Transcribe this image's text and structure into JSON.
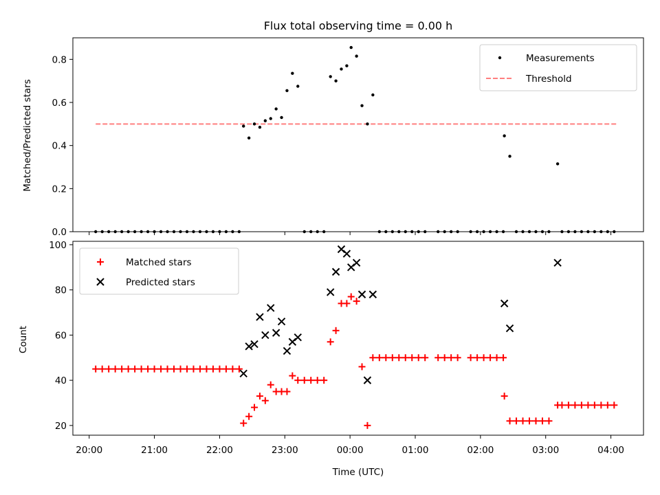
{
  "chart_data": [
    {
      "type": "scatter",
      "title": "Flux total observing time = 0.00 h",
      "xlabel": "",
      "ylabel": "Matched/Predicted stars",
      "xlim": [
        "19:45",
        "04:30"
      ],
      "ylim": [
        0,
        0.9
      ],
      "yticks": [
        0.0,
        0.2,
        0.4,
        0.6,
        0.8
      ],
      "ytick_labels": [
        "0.0",
        "0.2",
        "0.4",
        "0.6",
        "0.8"
      ],
      "legend_position": "top-right",
      "threshold": {
        "name": "Threshold",
        "value": 0.5,
        "x_range": [
          "20:06",
          "04:06"
        ],
        "color": "#ff7f7f"
      },
      "series": [
        {
          "name": "Measurements",
          "color": "#000000",
          "points": [
            [
              "20:06",
              0
            ],
            [
              "20:12",
              0
            ],
            [
              "20:18",
              0
            ],
            [
              "20:24",
              0
            ],
            [
              "20:30",
              0
            ],
            [
              "20:36",
              0
            ],
            [
              "20:42",
              0
            ],
            [
              "20:48",
              0
            ],
            [
              "20:54",
              0
            ],
            [
              "21:00",
              0
            ],
            [
              "21:06",
              0
            ],
            [
              "21:12",
              0
            ],
            [
              "21:18",
              0
            ],
            [
              "21:24",
              0
            ],
            [
              "21:30",
              0
            ],
            [
              "21:36",
              0
            ],
            [
              "21:42",
              0
            ],
            [
              "21:48",
              0
            ],
            [
              "21:54",
              0
            ],
            [
              "22:00",
              0
            ],
            [
              "22:06",
              0
            ],
            [
              "22:12",
              0
            ],
            [
              "22:18",
              0
            ],
            [
              "22:22",
              0.49
            ],
            [
              "22:27",
              0.435
            ],
            [
              "22:32",
              0.5
            ],
            [
              "22:37",
              0.485
            ],
            [
              "22:42",
              0.515
            ],
            [
              "22:47",
              0.525
            ],
            [
              "22:52",
              0.57
            ],
            [
              "22:57",
              0.53
            ],
            [
              "23:02",
              0.655
            ],
            [
              "23:07",
              0.735
            ],
            [
              "23:12",
              0.675
            ],
            [
              "23:18",
              0
            ],
            [
              "23:24",
              0
            ],
            [
              "23:30",
              0
            ],
            [
              "23:36",
              0
            ],
            [
              "23:42",
              0.72
            ],
            [
              "23:47",
              0.7
            ],
            [
              "23:52",
              0.755
            ],
            [
              "23:57",
              0.77
            ],
            [
              "00:01",
              0.855
            ],
            [
              "00:06",
              0.815
            ],
            [
              "00:11",
              0.585
            ],
            [
              "00:16",
              0.5
            ],
            [
              "00:21",
              0.635
            ],
            [
              "00:27",
              0
            ],
            [
              "00:33",
              0
            ],
            [
              "00:39",
              0
            ],
            [
              "00:45",
              0
            ],
            [
              "00:51",
              0
            ],
            [
              "00:57",
              0
            ],
            [
              "01:03",
              0
            ],
            [
              "01:09",
              0
            ],
            [
              "01:21",
              0
            ],
            [
              "01:27",
              0
            ],
            [
              "01:33",
              0
            ],
            [
              "01:39",
              0
            ],
            [
              "01:51",
              0
            ],
            [
              "01:57",
              0
            ],
            [
              "02:03",
              0
            ],
            [
              "02:09",
              0
            ],
            [
              "02:15",
              0
            ],
            [
              "02:21",
              0
            ],
            [
              "02:22",
              0.445
            ],
            [
              "02:27",
              0.35
            ],
            [
              "02:33",
              0
            ],
            [
              "02:39",
              0
            ],
            [
              "02:45",
              0
            ],
            [
              "02:51",
              0
            ],
            [
              "02:57",
              0
            ],
            [
              "03:03",
              0
            ],
            [
              "03:11",
              0.315
            ],
            [
              "03:15",
              0
            ],
            [
              "03:21",
              0
            ],
            [
              "03:27",
              0
            ],
            [
              "03:33",
              0
            ],
            [
              "03:39",
              0
            ],
            [
              "03:45",
              0
            ],
            [
              "03:51",
              0
            ],
            [
              "03:57",
              0
            ],
            [
              "04:03",
              0
            ]
          ]
        }
      ]
    },
    {
      "type": "scatter",
      "title": "",
      "xlabel": "Time (UTC)",
      "ylabel": "Count",
      "xlim": [
        "19:45",
        "04:30"
      ],
      "ylim": [
        15.7,
        101.5
      ],
      "yticks": [
        20,
        40,
        60,
        80,
        100
      ],
      "ytick_labels": [
        "20",
        "40",
        "60",
        "80",
        "100"
      ],
      "xticks": [
        "20:00",
        "21:00",
        "22:00",
        "23:00",
        "00:00",
        "01:00",
        "02:00",
        "03:00",
        "04:00"
      ],
      "legend_position": "top-left",
      "series": [
        {
          "name": "Matched stars",
          "marker": "+",
          "color": "#ff0000",
          "points": [
            [
              "20:06",
              45
            ],
            [
              "20:12",
              45
            ],
            [
              "20:18",
              45
            ],
            [
              "20:24",
              45
            ],
            [
              "20:30",
              45
            ],
            [
              "20:36",
              45
            ],
            [
              "20:42",
              45
            ],
            [
              "20:48",
              45
            ],
            [
              "20:54",
              45
            ],
            [
              "21:00",
              45
            ],
            [
              "21:06",
              45
            ],
            [
              "21:12",
              45
            ],
            [
              "21:18",
              45
            ],
            [
              "21:24",
              45
            ],
            [
              "21:30",
              45
            ],
            [
              "21:36",
              45
            ],
            [
              "21:42",
              45
            ],
            [
              "21:48",
              45
            ],
            [
              "21:54",
              45
            ],
            [
              "22:00",
              45
            ],
            [
              "22:06",
              45
            ],
            [
              "22:12",
              45
            ],
            [
              "22:18",
              45
            ],
            [
              "22:22",
              21
            ],
            [
              "22:27",
              24
            ],
            [
              "22:32",
              28
            ],
            [
              "22:37",
              33
            ],
            [
              "22:42",
              31
            ],
            [
              "22:47",
              38
            ],
            [
              "22:52",
              35
            ],
            [
              "22:57",
              35
            ],
            [
              "23:02",
              35
            ],
            [
              "23:07",
              42
            ],
            [
              "23:12",
              40
            ],
            [
              "23:18",
              40
            ],
            [
              "23:24",
              40
            ],
            [
              "23:30",
              40
            ],
            [
              "23:36",
              40
            ],
            [
              "23:42",
              57
            ],
            [
              "23:47",
              62
            ],
            [
              "23:52",
              74
            ],
            [
              "23:57",
              74
            ],
            [
              "00:01",
              77
            ],
            [
              "00:06",
              75
            ],
            [
              "00:11",
              46
            ],
            [
              "00:16",
              20
            ],
            [
              "00:21",
              50
            ],
            [
              "00:27",
              50
            ],
            [
              "00:33",
              50
            ],
            [
              "00:39",
              50
            ],
            [
              "00:45",
              50
            ],
            [
              "00:51",
              50
            ],
            [
              "00:57",
              50
            ],
            [
              "01:03",
              50
            ],
            [
              "01:09",
              50
            ],
            [
              "01:21",
              50
            ],
            [
              "01:27",
              50
            ],
            [
              "01:33",
              50
            ],
            [
              "01:39",
              50
            ],
            [
              "01:51",
              50
            ],
            [
              "01:57",
              50
            ],
            [
              "02:03",
              50
            ],
            [
              "02:09",
              50
            ],
            [
              "02:15",
              50
            ],
            [
              "02:21",
              50
            ],
            [
              "02:22",
              33
            ],
            [
              "02:27",
              22
            ],
            [
              "02:33",
              22
            ],
            [
              "02:39",
              22
            ],
            [
              "02:45",
              22
            ],
            [
              "02:51",
              22
            ],
            [
              "02:57",
              22
            ],
            [
              "03:03",
              22
            ],
            [
              "03:11",
              29
            ],
            [
              "03:15",
              29
            ],
            [
              "03:21",
              29
            ],
            [
              "03:27",
              29
            ],
            [
              "03:33",
              29
            ],
            [
              "03:39",
              29
            ],
            [
              "03:45",
              29
            ],
            [
              "03:51",
              29
            ],
            [
              "03:57",
              29
            ],
            [
              "04:03",
              29
            ]
          ]
        },
        {
          "name": "Predicted stars",
          "marker": "x",
          "color": "#000000",
          "points": [
            [
              "22:22",
              43
            ],
            [
              "22:27",
              55
            ],
            [
              "22:32",
              56
            ],
            [
              "22:37",
              68
            ],
            [
              "22:42",
              60
            ],
            [
              "22:47",
              72
            ],
            [
              "22:52",
              61
            ],
            [
              "22:57",
              66
            ],
            [
              "23:02",
              53
            ],
            [
              "23:07",
              57
            ],
            [
              "23:12",
              59
            ],
            [
              "23:42",
              79
            ],
            [
              "23:47",
              88
            ],
            [
              "23:52",
              98
            ],
            [
              "23:57",
              96
            ],
            [
              "00:01",
              90
            ],
            [
              "00:06",
              92
            ],
            [
              "00:11",
              78
            ],
            [
              "00:16",
              40
            ],
            [
              "00:21",
              78
            ],
            [
              "02:22",
              74
            ],
            [
              "02:27",
              63
            ],
            [
              "03:11",
              92
            ]
          ]
        }
      ]
    }
  ]
}
